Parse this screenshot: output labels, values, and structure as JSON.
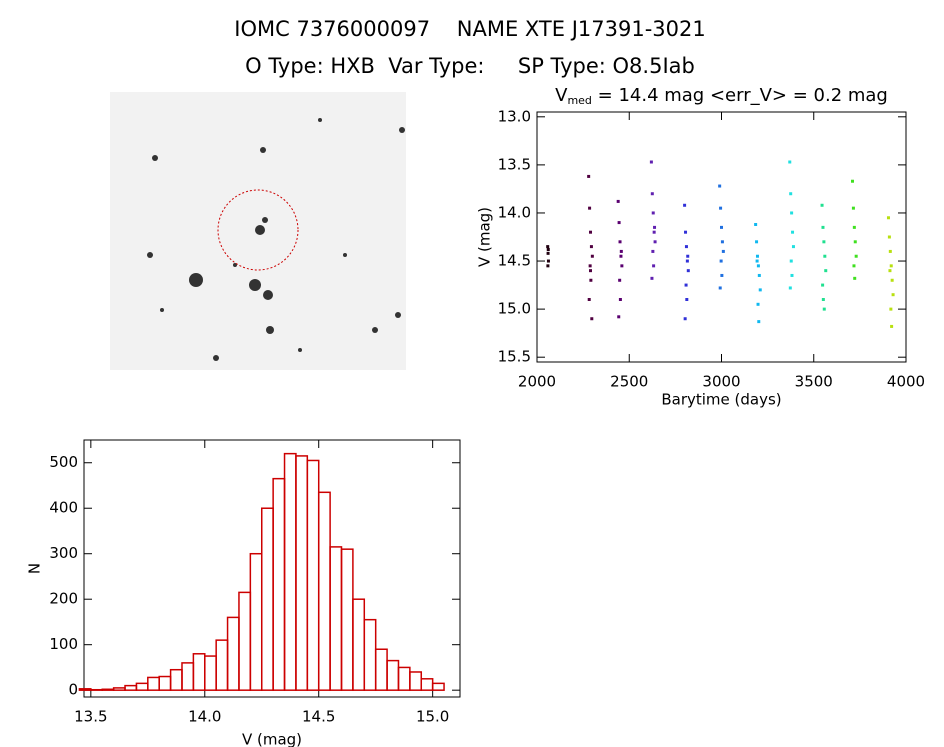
{
  "header": {
    "title": "IOMC 7376000097    NAME XTE J17391-3021",
    "subtitle": "O Type: HXB  Var Type:     SP Type: O8.5Iab"
  },
  "chart_data": [
    {
      "type": "scatter",
      "title": "V",
      "title_subscript": "med",
      "title_rest": " = 14.4 mag  <err_V> = 0.2 mag",
      "x_label": "Barytime (days)",
      "y_label": "V (mag)",
      "xlim": [
        2000,
        4000
      ],
      "xticks": [
        2000,
        2500,
        3000,
        3500,
        4000
      ],
      "ylim": [
        15.55,
        12.95
      ],
      "yticks": [
        {
          "value": 13,
          "label": "13.0"
        },
        13.5,
        {
          "value": 14,
          "label": "14.0"
        },
        14.5,
        {
          "value": 15,
          "label": "15.0"
        },
        15.5
      ],
      "series": [
        {
          "color": "#200010",
          "x": [
            2058,
            2060,
            2062,
            2059,
            2061
          ],
          "values": [
            14.35,
            14.42,
            14.5,
            14.55,
            14.38
          ]
        },
        {
          "color": "#500040",
          "x": [
            2280,
            2285,
            2290,
            2295,
            2300,
            2288,
            2292,
            2283,
            2297,
            2290
          ],
          "values": [
            13.62,
            13.95,
            14.2,
            14.35,
            14.45,
            14.55,
            14.7,
            14.9,
            15.1,
            14.6
          ]
        },
        {
          "color": "#5a0070",
          "x": [
            2440,
            2445,
            2450,
            2455,
            2460,
            2448,
            2452,
            2443,
            2457
          ],
          "values": [
            13.88,
            14.1,
            14.3,
            14.45,
            14.55,
            14.7,
            14.9,
            15.08,
            14.4
          ]
        },
        {
          "color": "#6020b0",
          "x": [
            2620,
            2625,
            2630,
            2635,
            2640,
            2628,
            2632,
            2623,
            2637
          ],
          "values": [
            13.47,
            13.8,
            14.0,
            14.2,
            14.3,
            14.4,
            14.55,
            14.68,
            14.15
          ]
        },
        {
          "color": "#3030d8",
          "x": [
            2800,
            2805,
            2810,
            2815,
            2820,
            2808,
            2812,
            2803,
            2817
          ],
          "values": [
            13.92,
            14.2,
            14.35,
            14.5,
            14.6,
            14.75,
            14.9,
            15.1,
            14.45
          ]
        },
        {
          "color": "#2070e0",
          "x": [
            2990,
            2995,
            3000,
            3005,
            3010,
            2998,
            3002,
            2993
          ],
          "values": [
            13.72,
            13.95,
            14.15,
            14.3,
            14.4,
            14.5,
            14.65,
            14.78
          ]
        },
        {
          "color": "#10b8f0",
          "x": [
            3185,
            3190,
            3195,
            3200,
            3205,
            3210,
            3198,
            3202,
            3193
          ],
          "values": [
            14.12,
            14.3,
            14.45,
            14.55,
            14.65,
            14.8,
            14.95,
            15.13,
            14.5
          ]
        },
        {
          "color": "#20e0e0",
          "x": [
            3370,
            3375,
            3380,
            3385,
            3390,
            3378,
            3382,
            3373
          ],
          "values": [
            13.47,
            13.8,
            14.0,
            14.2,
            14.35,
            14.5,
            14.65,
            14.78
          ]
        },
        {
          "color": "#20e090",
          "x": [
            3545,
            3550,
            3555,
            3560,
            3565,
            3548,
            3552,
            3557
          ],
          "values": [
            13.92,
            14.15,
            14.3,
            14.45,
            14.6,
            14.75,
            14.9,
            15.0
          ]
        },
        {
          "color": "#40e020",
          "x": [
            3710,
            3715,
            3720,
            3725,
            3730,
            3718,
            3722
          ],
          "values": [
            13.67,
            13.95,
            14.15,
            14.3,
            14.45,
            14.55,
            14.68
          ]
        },
        {
          "color": "#b8e010",
          "x": [
            3905,
            3910,
            3915,
            3920,
            3925,
            3930,
            3918,
            3922,
            3913
          ],
          "values": [
            14.05,
            14.25,
            14.4,
            14.55,
            14.7,
            14.85,
            15.0,
            15.18,
            14.6
          ]
        }
      ]
    },
    {
      "type": "histogram",
      "x_label": "V (mag)",
      "y_label": "N",
      "color": "#cc0000",
      "xlim": [
        13.47,
        15.12
      ],
      "xticks": [
        13.5,
        {
          "value": 14,
          "label": "14.0"
        },
        14.5,
        {
          "value": 15,
          "label": "15.0"
        }
      ],
      "ylim": [
        -15,
        550
      ],
      "yticks": [
        0,
        100,
        200,
        300,
        400,
        500
      ],
      "bins": [
        13.45,
        13.5,
        13.55,
        13.6,
        13.65,
        13.7,
        13.75,
        13.8,
        13.85,
        13.9,
        13.95,
        14.0,
        14.05,
        14.1,
        14.15,
        14.2,
        14.25,
        14.3,
        14.35,
        14.4,
        14.45,
        14.5,
        14.55,
        14.6,
        14.65,
        14.7,
        14.75,
        14.8,
        14.85,
        14.9,
        14.95,
        15.0,
        15.05
      ],
      "values": [
        3,
        1,
        2,
        5,
        10,
        15,
        28,
        30,
        45,
        60,
        80,
        75,
        110,
        160,
        215,
        300,
        400,
        465,
        520,
        515,
        505,
        435,
        315,
        310,
        200,
        155,
        90,
        65,
        50,
        40,
        25,
        15
      ]
    }
  ]
}
